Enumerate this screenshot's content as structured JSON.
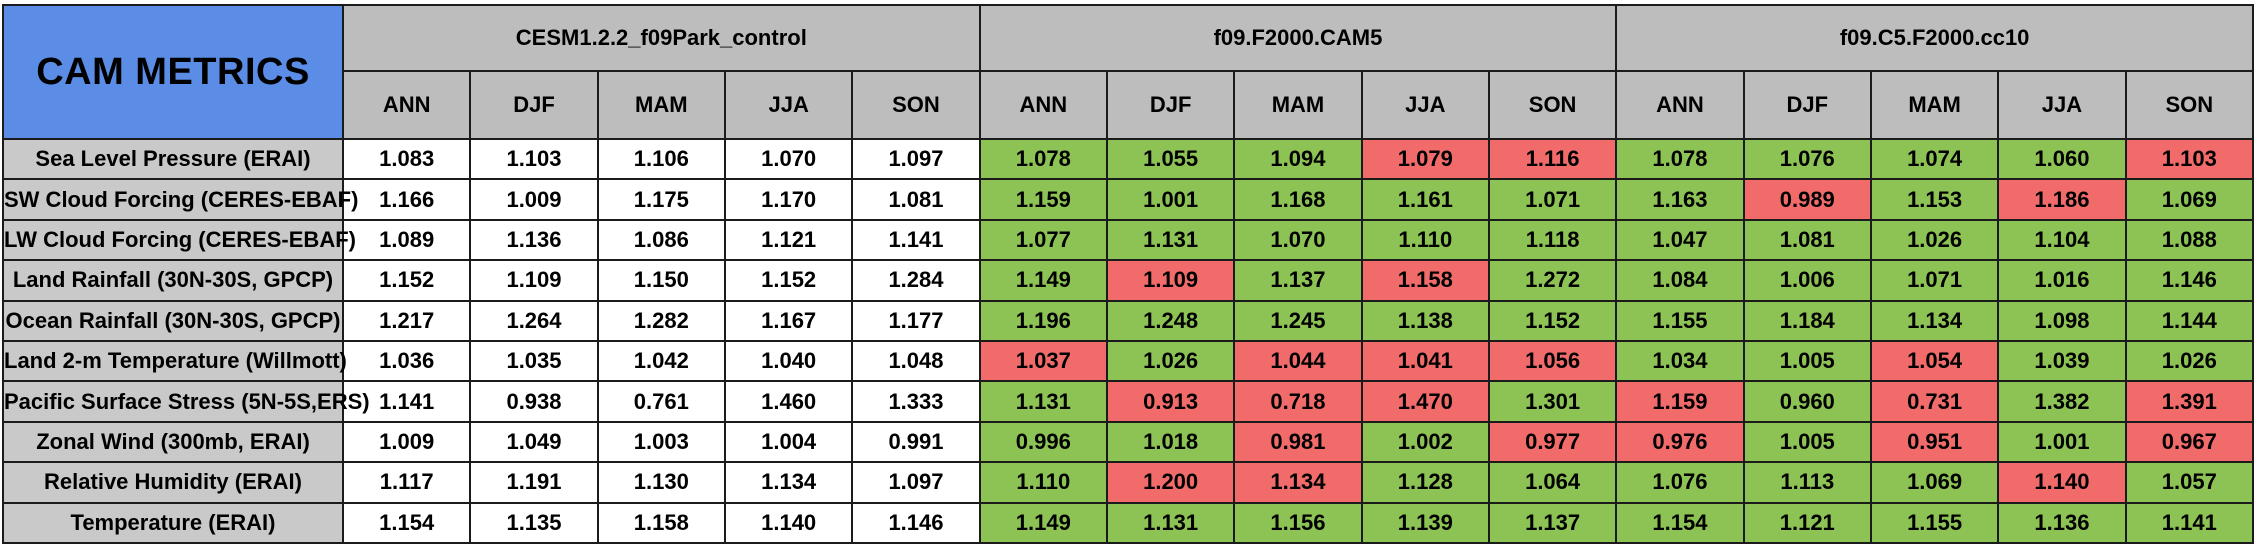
{
  "title": "CAM METRICS",
  "experiments": [
    {
      "name": "CESM1.2.2_f09Park_control"
    },
    {
      "name": "f09.F2000.CAM5"
    },
    {
      "name": "f09.C5.F2000.cc10"
    }
  ],
  "seasons": [
    "ANN",
    "DJF",
    "MAM",
    "JJA",
    "SON"
  ],
  "colors": {
    "title_bg": "#5b8de6",
    "header_bg": "#bdbdbd",
    "metric_bg": "#c9c9c9",
    "better": "#8dc354",
    "worse": "#f26b6b",
    "baseline": "#ffffff"
  },
  "rows": [
    {
      "metric": "Sea Level Pressure (ERAI)",
      "values": [
        [
          "1.083",
          "1.103",
          "1.106",
          "1.070",
          "1.097"
        ],
        [
          "1.078",
          "1.055",
          "1.094",
          "1.079",
          "1.116"
        ],
        [
          "1.078",
          "1.076",
          "1.074",
          "1.060",
          "1.103"
        ]
      ],
      "status": [
        [
          "none",
          "none",
          "none",
          "none",
          "none"
        ],
        [
          "better",
          "better",
          "better",
          "worse",
          "worse"
        ],
        [
          "better",
          "better",
          "better",
          "better",
          "worse"
        ]
      ]
    },
    {
      "metric": "SW Cloud Forcing (CERES-EBAF)",
      "values": [
        [
          "1.166",
          "1.009",
          "1.175",
          "1.170",
          "1.081"
        ],
        [
          "1.159",
          "1.001",
          "1.168",
          "1.161",
          "1.071"
        ],
        [
          "1.163",
          "0.989",
          "1.153",
          "1.186",
          "1.069"
        ]
      ],
      "status": [
        [
          "none",
          "none",
          "none",
          "none",
          "none"
        ],
        [
          "better",
          "better",
          "better",
          "better",
          "better"
        ],
        [
          "better",
          "worse",
          "better",
          "worse",
          "better"
        ]
      ]
    },
    {
      "metric": "LW Cloud Forcing (CERES-EBAF)",
      "values": [
        [
          "1.089",
          "1.136",
          "1.086",
          "1.121",
          "1.141"
        ],
        [
          "1.077",
          "1.131",
          "1.070",
          "1.110",
          "1.118"
        ],
        [
          "1.047",
          "1.081",
          "1.026",
          "1.104",
          "1.088"
        ]
      ],
      "status": [
        [
          "none",
          "none",
          "none",
          "none",
          "none"
        ],
        [
          "better",
          "better",
          "better",
          "better",
          "better"
        ],
        [
          "better",
          "better",
          "better",
          "better",
          "better"
        ]
      ]
    },
    {
      "metric": "Land Rainfall (30N-30S, GPCP)",
      "values": [
        [
          "1.152",
          "1.109",
          "1.150",
          "1.152",
          "1.284"
        ],
        [
          "1.149",
          "1.109",
          "1.137",
          "1.158",
          "1.272"
        ],
        [
          "1.084",
          "1.006",
          "1.071",
          "1.016",
          "1.146"
        ]
      ],
      "status": [
        [
          "none",
          "none",
          "none",
          "none",
          "none"
        ],
        [
          "better",
          "worse",
          "better",
          "worse",
          "better"
        ],
        [
          "better",
          "better",
          "better",
          "better",
          "better"
        ]
      ]
    },
    {
      "metric": "Ocean Rainfall (30N-30S, GPCP)",
      "values": [
        [
          "1.217",
          "1.264",
          "1.282",
          "1.167",
          "1.177"
        ],
        [
          "1.196",
          "1.248",
          "1.245",
          "1.138",
          "1.152"
        ],
        [
          "1.155",
          "1.184",
          "1.134",
          "1.098",
          "1.144"
        ]
      ],
      "status": [
        [
          "none",
          "none",
          "none",
          "none",
          "none"
        ],
        [
          "better",
          "better",
          "better",
          "better",
          "better"
        ],
        [
          "better",
          "better",
          "better",
          "better",
          "better"
        ]
      ]
    },
    {
      "metric": "Land 2-m Temperature (Willmott)",
      "values": [
        [
          "1.036",
          "1.035",
          "1.042",
          "1.040",
          "1.048"
        ],
        [
          "1.037",
          "1.026",
          "1.044",
          "1.041",
          "1.056"
        ],
        [
          "1.034",
          "1.005",
          "1.054",
          "1.039",
          "1.026"
        ]
      ],
      "status": [
        [
          "none",
          "none",
          "none",
          "none",
          "none"
        ],
        [
          "worse",
          "better",
          "worse",
          "worse",
          "worse"
        ],
        [
          "better",
          "better",
          "worse",
          "better",
          "better"
        ]
      ]
    },
    {
      "metric": "Pacific Surface Stress (5N-5S,ERS)",
      "values": [
        [
          "1.141",
          "0.938",
          "0.761",
          "1.460",
          "1.333"
        ],
        [
          "1.131",
          "0.913",
          "0.718",
          "1.470",
          "1.301"
        ],
        [
          "1.159",
          "0.960",
          "0.731",
          "1.382",
          "1.391"
        ]
      ],
      "status": [
        [
          "none",
          "none",
          "none",
          "none",
          "none"
        ],
        [
          "better",
          "worse",
          "worse",
          "worse",
          "better"
        ],
        [
          "worse",
          "better",
          "worse",
          "better",
          "worse"
        ]
      ]
    },
    {
      "metric": "Zonal Wind (300mb, ERAI)",
      "values": [
        [
          "1.009",
          "1.049",
          "1.003",
          "1.004",
          "0.991"
        ],
        [
          "0.996",
          "1.018",
          "0.981",
          "1.002",
          "0.977"
        ],
        [
          "0.976",
          "1.005",
          "0.951",
          "1.001",
          "0.967"
        ]
      ],
      "status": [
        [
          "none",
          "none",
          "none",
          "none",
          "none"
        ],
        [
          "better",
          "better",
          "worse",
          "better",
          "worse"
        ],
        [
          "worse",
          "better",
          "worse",
          "better",
          "worse"
        ]
      ]
    },
    {
      "metric": "Relative Humidity (ERAI)",
      "values": [
        [
          "1.117",
          "1.191",
          "1.130",
          "1.134",
          "1.097"
        ],
        [
          "1.110",
          "1.200",
          "1.134",
          "1.128",
          "1.064"
        ],
        [
          "1.076",
          "1.113",
          "1.069",
          "1.140",
          "1.057"
        ]
      ],
      "status": [
        [
          "none",
          "none",
          "none",
          "none",
          "none"
        ],
        [
          "better",
          "worse",
          "worse",
          "better",
          "better"
        ],
        [
          "better",
          "better",
          "better",
          "worse",
          "better"
        ]
      ]
    },
    {
      "metric": "Temperature (ERAI)",
      "values": [
        [
          "1.154",
          "1.135",
          "1.158",
          "1.140",
          "1.146"
        ],
        [
          "1.149",
          "1.131",
          "1.156",
          "1.139",
          "1.137"
        ],
        [
          "1.154",
          "1.121",
          "1.155",
          "1.136",
          "1.141"
        ]
      ],
      "status": [
        [
          "none",
          "none",
          "none",
          "none",
          "none"
        ],
        [
          "better",
          "better",
          "better",
          "better",
          "better"
        ],
        [
          "better",
          "better",
          "better",
          "better",
          "better"
        ]
      ]
    }
  ]
}
